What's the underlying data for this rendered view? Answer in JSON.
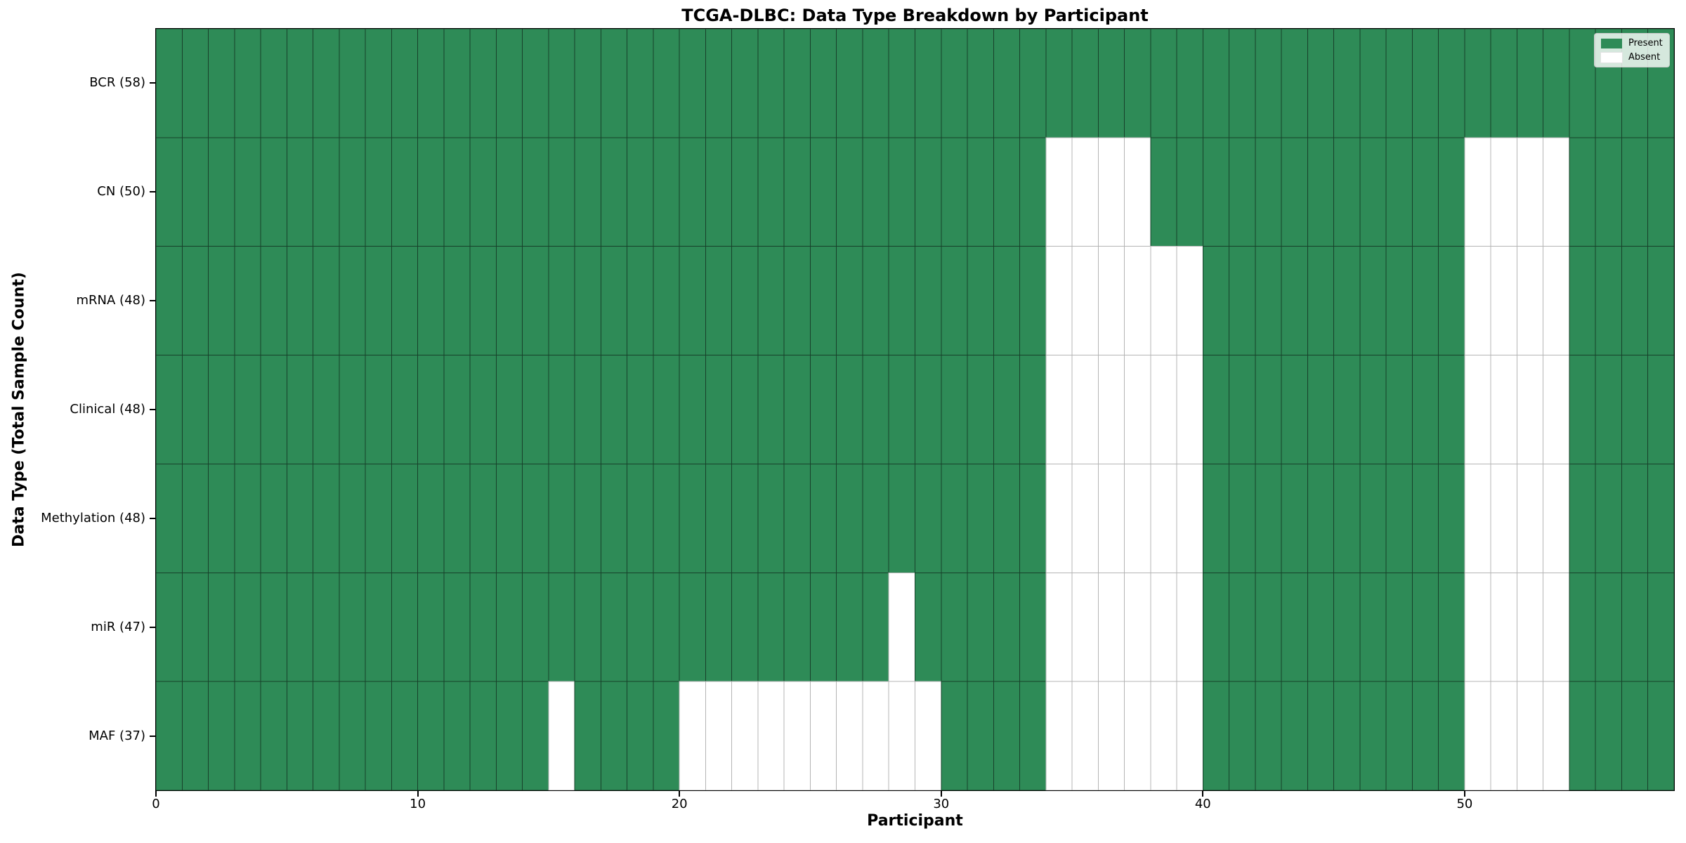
{
  "chart_data": {
    "type": "heatmap",
    "title": "TCGA-DLBC: Data Type Breakdown by Participant",
    "xlabel": "Participant",
    "ylabel": "Data Type (Total Sample Count)",
    "x_range": [
      0,
      58
    ],
    "x_ticks": [
      0,
      10,
      20,
      30,
      40,
      50
    ],
    "n_participants": 58,
    "grid": "cell-edges",
    "rows": [
      {
        "data_type": "BCR",
        "label": "BCR (58)",
        "total": 58,
        "absent_participants": []
      },
      {
        "data_type": "CN",
        "label": "CN (50)",
        "total": 50,
        "absent_participants": [
          34,
          35,
          36,
          37,
          50,
          51,
          52,
          53
        ]
      },
      {
        "data_type": "mRNA",
        "label": "mRNA (48)",
        "total": 48,
        "absent_participants": [
          34,
          35,
          36,
          37,
          38,
          39,
          50,
          51,
          52,
          53
        ]
      },
      {
        "data_type": "Clinical",
        "label": "Clinical (48)",
        "total": 48,
        "absent_participants": [
          34,
          35,
          36,
          37,
          38,
          39,
          50,
          51,
          52,
          53
        ]
      },
      {
        "data_type": "Methylation",
        "label": "Methylation (48)",
        "total": 48,
        "absent_participants": [
          34,
          35,
          36,
          37,
          38,
          39,
          50,
          51,
          52,
          53
        ]
      },
      {
        "data_type": "miR",
        "label": "miR (47)",
        "total": 47,
        "absent_participants": [
          28,
          34,
          35,
          36,
          37,
          38,
          39,
          50,
          51,
          52,
          53
        ]
      },
      {
        "data_type": "MAF",
        "label": "MAF (37)",
        "total": 37,
        "absent_participants": [
          15,
          20,
          21,
          22,
          23,
          24,
          25,
          26,
          27,
          28,
          29,
          34,
          35,
          36,
          37,
          38,
          39,
          50,
          51,
          52,
          53
        ]
      }
    ],
    "legend": {
      "position": "upper-right",
      "items": [
        {
          "label": "Present",
          "color": "#2e8b57"
        },
        {
          "label": "Absent",
          "color": "#ffffff"
        }
      ]
    },
    "colors": {
      "present": "#2e8b57",
      "absent": "#ffffff",
      "present_cell_edge": "#17402a",
      "absent_cell_edge": "#b4b4b4",
      "spine": "#000000",
      "legend_border": "#cccccc"
    }
  }
}
